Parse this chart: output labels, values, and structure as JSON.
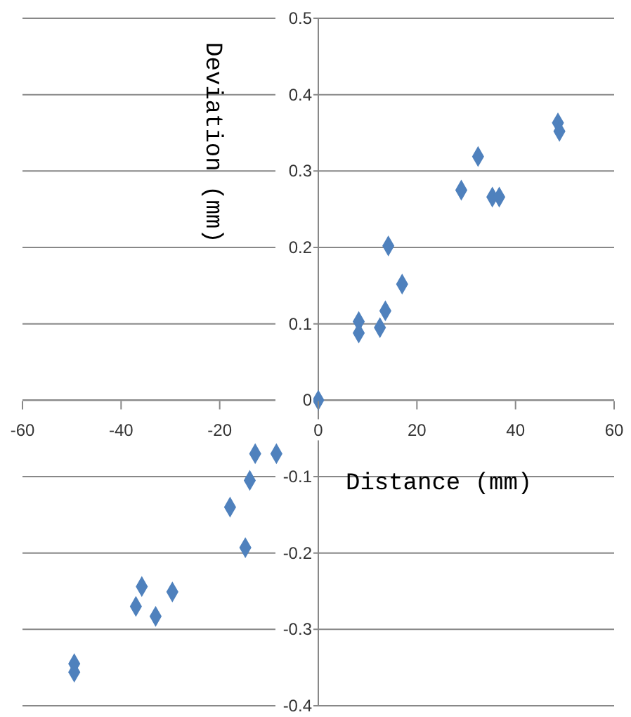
{
  "chart_data": {
    "type": "scatter",
    "xlabel": "Distance (mm)",
    "ylabel": "Deviation (mm)",
    "x": [
      0,
      8.2,
      8.2,
      12.5,
      13.6,
      14.2,
      17,
      29,
      32.4,
      35.3,
      36.7,
      48.6,
      48.9,
      -12.8,
      -8.5,
      -13.9,
      -17.9,
      -14.8,
      -35.8,
      -37,
      -33,
      -29.6,
      -49.5,
      -49.5
    ],
    "series": [
      {
        "color": "#4f81bd",
        "values": [
          0,
          0.103,
          0.088,
          0.095,
          0.117,
          0.202,
          0.152,
          0.275,
          0.319,
          0.266,
          0.266,
          0.363,
          0.352,
          -0.07,
          -0.07,
          -0.105,
          -0.14,
          -0.193,
          -0.244,
          -0.27,
          -0.283,
          -0.251,
          -0.345,
          -0.356
        ]
      }
    ],
    "xlim": [
      -60,
      60
    ],
    "xticks": [
      -60,
      -40,
      -20,
      0,
      20,
      40,
      60
    ],
    "ylim": [
      -0.4,
      0.5
    ],
    "yticks": [
      -0.4,
      -0.3,
      -0.2,
      -0.1,
      0,
      0.1,
      0.2,
      0.3,
      0.4,
      0.5
    ],
    "grid": "y",
    "legend": false,
    "marker": "diamond"
  }
}
